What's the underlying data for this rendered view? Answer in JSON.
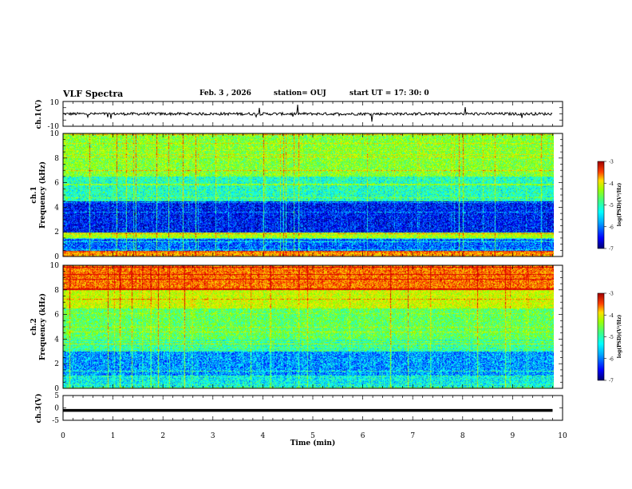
{
  "header": {
    "title": "VLF Spectra",
    "date": "Feb. 3 , 2026",
    "station": "station= OUJ",
    "start_time": "start UT = 17: 30: 0"
  },
  "colors": {
    "colormap": [
      "#00007f",
      "#0000ff",
      "#007fff",
      "#00ffff",
      "#3fff9f",
      "#7fff00",
      "#dfff00",
      "#ffbf00",
      "#ff4000",
      "#d40000"
    ],
    "trace": "#000000"
  },
  "chart_data": [
    {
      "type": "line",
      "ylabel": "ch.1(V)",
      "ylim": [
        -10,
        10
      ],
      "yticks": [
        "10",
        "-10"
      ],
      "baseline_value": 0,
      "x_range": [
        0,
        9.8
      ]
    },
    {
      "type": "heatmap",
      "ylabel": "ch.1\nFrequency (kHz)",
      "ylim": [
        0,
        10
      ],
      "yticks": [
        "0",
        "2",
        "4",
        "6",
        "8",
        "10"
      ],
      "colorbar": {
        "label": "log(PSD)(V²/Hz)",
        "range": [
          -7,
          -3
        ],
        "ticks": [
          "-3",
          "-4",
          "-5",
          "-6",
          "-7"
        ]
      },
      "dominant_log_psd_by_band": [
        {
          "kHz": [
            0,
            0.5
          ],
          "log_psd": -3.8
        },
        {
          "kHz": [
            0.5,
            1.5
          ],
          "log_psd": -6.2
        },
        {
          "kHz": [
            1.5,
            2.0
          ],
          "log_psd": -4.6
        },
        {
          "kHz": [
            2.0,
            4.5
          ],
          "log_psd": -6.5
        },
        {
          "kHz": [
            4.5,
            6.5
          ],
          "log_psd": -5.4
        },
        {
          "kHz": [
            6.5,
            10
          ],
          "log_psd": -4.8
        }
      ]
    },
    {
      "type": "heatmap",
      "ylabel": "ch.2\nFrequency (kHz)",
      "ylim": [
        0,
        10
      ],
      "yticks": [
        "0",
        "2",
        "4",
        "6",
        "8",
        "10"
      ],
      "colorbar": {
        "label": "log(PSD)(V²/Hz)",
        "range": [
          -7,
          -3
        ],
        "ticks": [
          "-3",
          "-4",
          "-5",
          "-6",
          "-7"
        ]
      },
      "dominant_log_psd_by_band": [
        {
          "kHz": [
            0,
            1.0
          ],
          "log_psd": -5.6
        },
        {
          "kHz": [
            1.0,
            3.0
          ],
          "log_psd": -6.0
        },
        {
          "kHz": [
            3.0,
            4.0
          ],
          "log_psd": -5.3
        },
        {
          "kHz": [
            4.0,
            6.5
          ],
          "log_psd": -5.0
        },
        {
          "kHz": [
            6.5,
            8.0
          ],
          "log_psd": -4.4
        },
        {
          "kHz": [
            8.0,
            10
          ],
          "log_psd": -3.6
        }
      ]
    },
    {
      "type": "line",
      "ylabel": "ch.3(V)",
      "ylim": [
        -5,
        5
      ],
      "yticks": [
        "5",
        "0",
        "-5"
      ],
      "constant_value": -1,
      "x_range": [
        0,
        9.8
      ]
    }
  ],
  "xaxis": {
    "label": "Time (min)",
    "range": [
      0,
      10
    ],
    "ticks": [
      "0",
      "1",
      "2",
      "3",
      "4",
      "5",
      "6",
      "7",
      "8",
      "9",
      "10"
    ]
  }
}
